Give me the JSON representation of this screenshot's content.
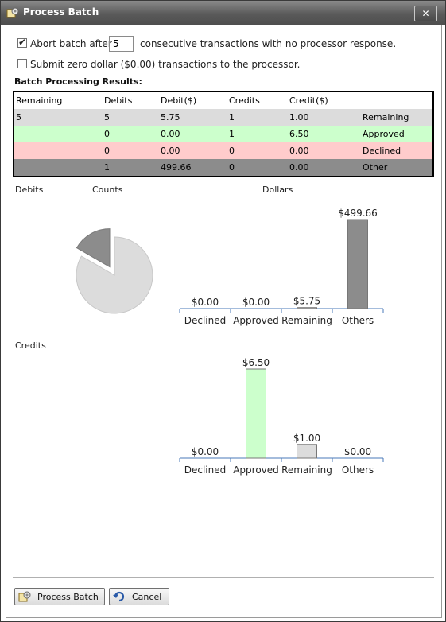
{
  "window": {
    "title": "Process Batch",
    "close_glyph": "✕"
  },
  "options": {
    "abort_checked": true,
    "abort_label_before": "Abort batch after",
    "abort_value": "5",
    "abort_label_after": "consecutive transactions with no processor response.",
    "zero_checked": false,
    "zero_label": "Submit zero dollar ($0.00) transactions to the processor."
  },
  "results": {
    "heading": "Batch Processing Results:",
    "headers": [
      "Remaining",
      "Debits",
      "Debit($)",
      "Credits",
      "Credit($)",
      ""
    ],
    "rows": [
      [
        "5",
        "5",
        "5.75",
        "1",
        "1.00",
        "Remaining"
      ],
      [
        "",
        "0",
        "0.00",
        "1",
        "6.50",
        "Approved"
      ],
      [
        "",
        "0",
        "0.00",
        "0",
        "0.00",
        "Declined"
      ],
      [
        "",
        "1",
        "499.66",
        "0",
        "0.00",
        "Other"
      ]
    ]
  },
  "captions": {
    "debits": "Debits",
    "counts": "Counts",
    "dollars": "Dollars",
    "credits": "Credits"
  },
  "colors": {
    "declined": "#ffcccc",
    "approved": "#ccffcc",
    "remaining": "#dcdcdc",
    "other": "#8c8c8c"
  },
  "chart_data": [
    {
      "type": "pie",
      "title": "Counts",
      "categories": [
        "Remaining",
        "Other"
      ],
      "values": [
        5,
        1
      ],
      "colors": [
        "#dcdcdc",
        "#8c8c8c"
      ]
    },
    {
      "type": "bar",
      "title": "Dollars",
      "categories": [
        "Declined",
        "Approved",
        "Remaining",
        "Others"
      ],
      "values": [
        0.0,
        0.0,
        5.75,
        499.66
      ],
      "labels": [
        "$0.00",
        "$0.00",
        "$5.75",
        "$499.66"
      ],
      "colors": [
        "#ffcccc",
        "#ccffcc",
        "#dcdcdc",
        "#8c8c8c"
      ],
      "ylim": [
        0,
        499.66
      ]
    },
    {
      "type": "bar",
      "title": "Credits",
      "categories": [
        "Declined",
        "Approved",
        "Remaining",
        "Others"
      ],
      "values": [
        0.0,
        6.5,
        1.0,
        0.0
      ],
      "labels": [
        "$0.00",
        "$6.50",
        "$1.00",
        "$0.00"
      ],
      "colors": [
        "#ffcccc",
        "#ccffcc",
        "#dcdcdc",
        "#8c8c8c"
      ],
      "ylim": [
        0,
        6.5
      ]
    }
  ],
  "buttons": {
    "process": "Process Batch",
    "cancel": "Cancel"
  },
  "icons": {
    "title": "gear-icon",
    "process": "gear-icon",
    "cancel": "cancel-arrow-icon"
  }
}
